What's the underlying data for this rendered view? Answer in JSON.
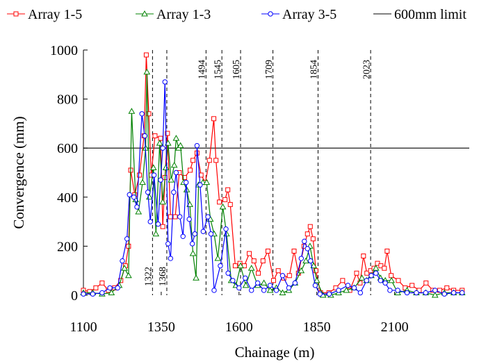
{
  "chart_data": {
    "type": "line",
    "x_label": "Chainage (m)",
    "y_label": "Convergence (mm)",
    "xlim": [
      1100,
      2340
    ],
    "ylim": [
      0,
      1000
    ],
    "xticks": [
      1100,
      1350,
      1600,
      1850,
      2100
    ],
    "yticks": [
      0,
      200,
      400,
      600,
      800,
      1000
    ],
    "limit": {
      "name": "600mm limit",
      "value": 600,
      "color": "#000000"
    },
    "vlines": [
      1322,
      1368,
      1494,
      1545,
      1605,
      1709,
      1854,
      2023
    ],
    "series": [
      {
        "name": "Array 1-5",
        "color": "#ff0000",
        "marker": "square",
        "x": [
          1100,
          1120,
          1140,
          1160,
          1180,
          1200,
          1220,
          1235,
          1245,
          1252,
          1265,
          1280,
          1295,
          1302,
          1310,
          1318,
          1330,
          1348,
          1355,
          1362,
          1370,
          1380,
          1395,
          1408,
          1425,
          1443,
          1452,
          1465,
          1478,
          1492,
          1505,
          1519,
          1526,
          1537,
          1555,
          1564,
          1572,
          1588,
          1603,
          1617,
          1633,
          1648,
          1662,
          1677,
          1693,
          1711,
          1726,
          1744,
          1762,
          1777,
          1791,
          1809,
          1820,
          1829,
          1838,
          1847,
          1862,
          1889,
          1911,
          1933,
          1956,
          1978,
          1989,
          2000,
          2011,
          2023,
          2034,
          2045,
          2056,
          2067,
          2076,
          2089,
          2112,
          2134,
          2156,
          2179,
          2201,
          2223,
          2245,
          2268,
          2290,
          2317
        ],
        "values": [
          20,
          15,
          30,
          50,
          20,
          30,
          60,
          120,
          200,
          510,
          410,
          490,
          650,
          980,
          740,
          490,
          650,
          640,
          280,
          480,
          660,
          320,
          320,
          500,
          480,
          510,
          550,
          580,
          490,
          460,
          550,
          720,
          550,
          380,
          390,
          430,
          370,
          120,
          130,
          120,
          170,
          140,
          90,
          140,
          180,
          60,
          100,
          70,
          80,
          180,
          90,
          200,
          250,
          280,
          230,
          100,
          10,
          10,
          30,
          60,
          20,
          90,
          50,
          160,
          90,
          100,
          110,
          130,
          120,
          110,
          180,
          80,
          60,
          30,
          40,
          20,
          50,
          20,
          20,
          30,
          20,
          20
        ]
      },
      {
        "name": "Array 1-3",
        "color": "#008000",
        "marker": "triangle",
        "x": [
          1100,
          1130,
          1160,
          1190,
          1215,
          1232,
          1245,
          1255,
          1268,
          1277,
          1290,
          1300,
          1304,
          1312,
          1325,
          1333,
          1345,
          1355,
          1365,
          1372,
          1382,
          1392,
          1398,
          1406,
          1412,
          1422,
          1432,
          1442,
          1452,
          1462,
          1470,
          1484,
          1496,
          1508,
          1520,
          1532,
          1548,
          1560,
          1575,
          1590,
          1605,
          1622,
          1640,
          1660,
          1680,
          1700,
          1720,
          1740,
          1760,
          1780,
          1800,
          1815,
          1828,
          1840,
          1850,
          1870,
          1895,
          1920,
          1945,
          1970,
          1995,
          2010,
          2025,
          2040,
          2055,
          2070,
          2090,
          2110,
          2140,
          2170,
          2200,
          2230,
          2260,
          2290,
          2317
        ],
        "values": [
          10,
          10,
          5,
          10,
          40,
          110,
          80,
          750,
          390,
          340,
          460,
          600,
          910,
          400,
          520,
          250,
          620,
          380,
          520,
          620,
          470,
          530,
          640,
          600,
          610,
          460,
          430,
          370,
          170,
          70,
          450,
          460,
          460,
          310,
          250,
          150,
          360,
          250,
          60,
          40,
          120,
          40,
          110,
          40,
          50,
          20,
          30,
          10,
          20,
          50,
          100,
          140,
          200,
          120,
          60,
          0,
          0,
          10,
          20,
          30,
          70,
          60,
          80,
          110,
          70,
          60,
          60,
          10,
          20,
          10,
          10,
          0,
          10,
          10,
          10
        ]
      },
      {
        "name": "Array 3-5",
        "color": "#0000ff",
        "marker": "circle",
        "x": [
          1100,
          1130,
          1160,
          1185,
          1210,
          1225,
          1240,
          1248,
          1262,
          1272,
          1288,
          1297,
          1307,
          1315,
          1327,
          1340,
          1348,
          1355,
          1362,
          1372,
          1380,
          1390,
          1398,
          1410,
          1420,
          1430,
          1440,
          1450,
          1458,
          1465,
          1475,
          1485,
          1500,
          1510,
          1520,
          1540,
          1558,
          1565,
          1580,
          1600,
          1620,
          1640,
          1660,
          1680,
          1700,
          1720,
          1740,
          1760,
          1780,
          1800,
          1810,
          1820,
          1830,
          1845,
          1860,
          1890,
          1920,
          1950,
          1970,
          1990,
          2010,
          2025,
          2040,
          2055,
          2070,
          2085,
          2110,
          2140,
          2170,
          2200,
          2230,
          2260,
          2290,
          2317
        ],
        "values": [
          5,
          5,
          10,
          30,
          30,
          140,
          230,
          410,
          400,
          360,
          740,
          650,
          420,
          300,
          490,
          290,
          470,
          600,
          870,
          210,
          150,
          420,
          500,
          320,
          240,
          460,
          310,
          210,
          250,
          610,
          450,
          260,
          320,
          250,
          20,
          120,
          270,
          90,
          60,
          30,
          70,
          20,
          50,
          20,
          40,
          20,
          80,
          30,
          50,
          150,
          220,
          190,
          140,
          40,
          5,
          5,
          20,
          40,
          30,
          10,
          60,
          80,
          90,
          60,
          50,
          20,
          20,
          10,
          10,
          10,
          20,
          5,
          10,
          10
        ]
      }
    ]
  }
}
